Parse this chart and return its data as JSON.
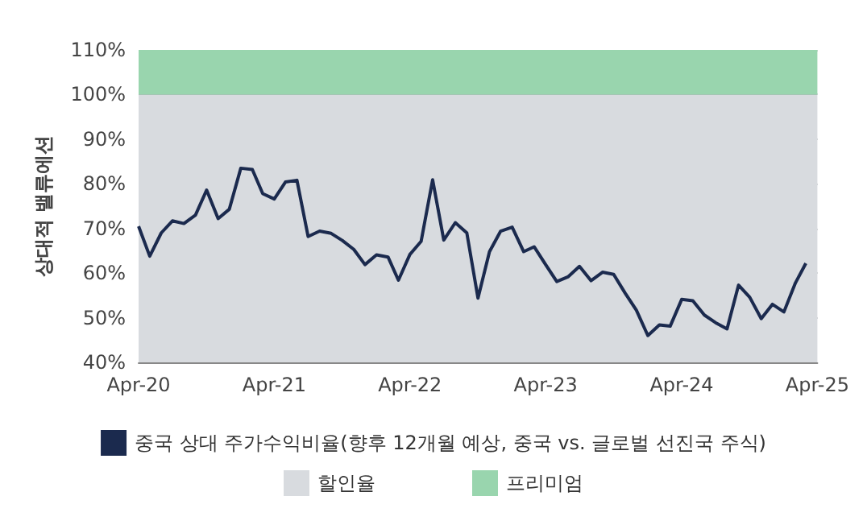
{
  "chart_data": {
    "type": "line",
    "ylabel": "상대적 밸류에션",
    "x": [
      "2020-04",
      "2020-05",
      "2020-06",
      "2020-07",
      "2020-08",
      "2020-09",
      "2020-10",
      "2020-11",
      "2020-12",
      "2021-01",
      "2021-02",
      "2021-03",
      "2021-04",
      "2021-05",
      "2021-06",
      "2021-07",
      "2021-08",
      "2021-09",
      "2021-10",
      "2021-11",
      "2021-12",
      "2022-01",
      "2022-02",
      "2022-03",
      "2022-04",
      "2022-05",
      "2022-06",
      "2022-07",
      "2022-08",
      "2022-09",
      "2022-10",
      "2022-11",
      "2022-12",
      "2023-01",
      "2023-02",
      "2023-03",
      "2023-04",
      "2023-05",
      "2023-06",
      "2023-07",
      "2023-08",
      "2023-09",
      "2023-10",
      "2023-11",
      "2023-12",
      "2024-01",
      "2024-02",
      "2024-03",
      "2024-04",
      "2024-05",
      "2024-06",
      "2024-07",
      "2024-08",
      "2024-09",
      "2024-10",
      "2024-11",
      "2024-12",
      "2025-01",
      "2025-02",
      "2025-03"
    ],
    "series": [
      {
        "name": "중국 상대 주가수익비율(향후 12개월 예상, 중국 vs. 글로벌 선진국 주식)",
        "color": "#1b2a4e",
        "values": [
          70.5,
          63.8,
          69,
          71.7,
          71.1,
          73,
          78.6,
          72.2,
          74.3,
          83.5,
          83.2,
          77.8,
          76.6,
          80.4,
          80.8,
          68.2,
          69.4,
          68.9,
          67.3,
          65.3,
          61.9,
          64.1,
          63.6,
          58.4,
          64.2,
          67.1,
          80.9,
          67.4,
          71.3,
          69,
          54.4,
          64.8,
          69.4,
          70.3,
          64.8,
          65.9,
          61.9,
          58.1,
          59.2,
          61.5,
          58.3,
          60.2,
          59.7,
          55.5,
          51.7,
          46,
          48.4,
          48.1,
          54.1,
          53.8,
          50.6,
          48.9,
          47.5,
          57.3,
          54.6,
          49.8,
          53,
          51.3,
          57.8,
          62.2
        ]
      }
    ],
    "bands": [
      {
        "axis": "y",
        "from": 40,
        "to": 100,
        "label": "할인율",
        "color": "#d8dbdf"
      },
      {
        "axis": "y",
        "from": 100,
        "to": 110,
        "label": "프리미엄",
        "color": "#99d5ae"
      }
    ],
    "xlim": [
      "2020-04",
      "2025-04"
    ],
    "xticks": [
      {
        "value": "2020-04",
        "label": "Apr-20"
      },
      {
        "value": "2021-04",
        "label": "Apr-21"
      },
      {
        "value": "2022-04",
        "label": "Apr-22"
      },
      {
        "value": "2023-04",
        "label": "Apr-23"
      },
      {
        "value": "2024-04",
        "label": "Apr-24"
      },
      {
        "value": "2025-04",
        "label": "Apr-25"
      }
    ],
    "ylim": [
      40,
      110
    ],
    "yticks": [
      {
        "value": 40,
        "label": "40%"
      },
      {
        "value": 50,
        "label": "50%"
      },
      {
        "value": 60,
        "label": "60%"
      },
      {
        "value": 70,
        "label": "70%"
      },
      {
        "value": 80,
        "label": "80%"
      },
      {
        "value": 90,
        "label": "90%"
      },
      {
        "value": 100,
        "label": "100%"
      },
      {
        "value": 110,
        "label": "110%"
      }
    ],
    "grid": "y",
    "legend": "bottom",
    "marker": "none",
    "line_style": "solid"
  }
}
